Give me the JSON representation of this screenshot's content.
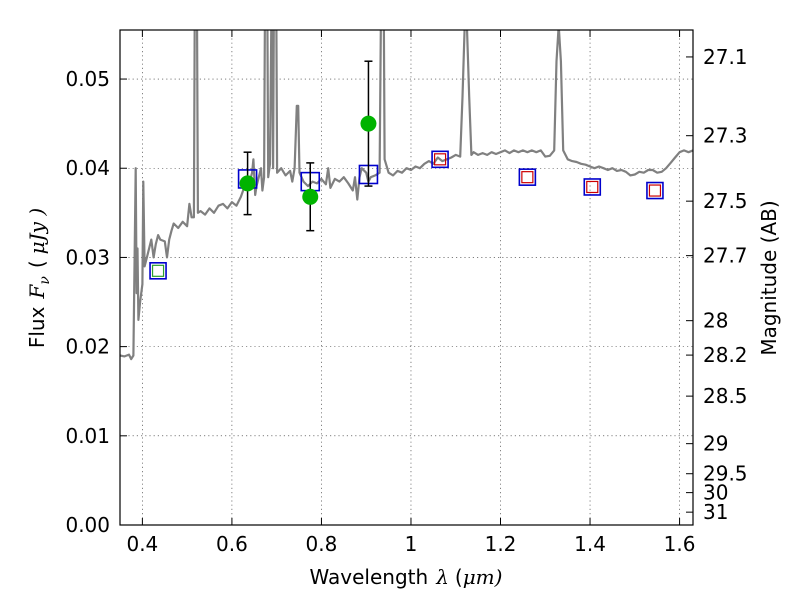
{
  "chart_data": {
    "type": "line",
    "xlabel": "Wavelength",
    "xlabel_symbol": "λ",
    "xlabel_unit_prefix": "(",
    "xlabel_unit": "μm)",
    "ylabel": "Flux",
    "ylabel_symbol": "F",
    "ylabel_symbol_sub": "ν",
    "ylabel_unit_prefix": "(",
    "ylabel_unit": "μJy )",
    "y2label": "Magnitude (AB)",
    "xlim": [
      0.35,
      1.63
    ],
    "ylim": [
      0.0,
      0.0555
    ],
    "grid": true,
    "x_ticks": [
      0.4,
      0.6,
      0.8,
      1.0,
      1.2,
      1.4,
      1.6
    ],
    "x_tick_labels": [
      "0.4",
      "0.6",
      "0.8",
      "1",
      "1.2",
      "1.4",
      "1.6"
    ],
    "y_ticks": [
      0.0,
      0.01,
      0.02,
      0.03,
      0.04,
      0.05
    ],
    "y_tick_labels": [
      "0.00",
      "0.01",
      "0.02",
      "0.03",
      "0.04",
      "0.05"
    ],
    "y2_ticks": [
      {
        "flux": 0.05248,
        "label": "27.1"
      },
      {
        "flux": 0.04365,
        "label": "27.3"
      },
      {
        "flux": 0.03631,
        "label": "27.5"
      },
      {
        "flux": 0.0302,
        "label": "27.7"
      },
      {
        "flux": 0.02291,
        "label": "28"
      },
      {
        "flux": 0.01905,
        "label": "28.2"
      },
      {
        "flux": 0.01445,
        "label": "28.5"
      },
      {
        "flux": 0.00912,
        "label": "29"
      },
      {
        "flux": 0.00575,
        "label": "29.5"
      },
      {
        "flux": 0.00363,
        "label": "30"
      },
      {
        "flux": 0.00144,
        "label": "31"
      }
    ],
    "colors": {
      "spectrum": "#808080",
      "observed": "#00b300",
      "model_box": "#0000cc",
      "inner_red": "#cc0000",
      "inner_green": "#2ca02c",
      "errorbar": "#000000"
    },
    "spectrum": [
      [
        0.35,
        0.019
      ],
      [
        0.36,
        0.0189
      ],
      [
        0.37,
        0.0191
      ],
      [
        0.375,
        0.0186
      ],
      [
        0.38,
        0.019
      ],
      [
        0.385,
        0.04
      ],
      [
        0.387,
        0.026
      ],
      [
        0.389,
        0.031
      ],
      [
        0.391,
        0.023
      ],
      [
        0.395,
        0.025
      ],
      [
        0.4,
        0.027
      ],
      [
        0.402,
        0.0385
      ],
      [
        0.405,
        0.029
      ],
      [
        0.41,
        0.03
      ],
      [
        0.415,
        0.031
      ],
      [
        0.42,
        0.032
      ],
      [
        0.425,
        0.03
      ],
      [
        0.43,
        0.0315
      ],
      [
        0.435,
        0.0325
      ],
      [
        0.44,
        0.032
      ],
      [
        0.45,
        0.0318
      ],
      [
        0.455,
        0.03
      ],
      [
        0.46,
        0.032
      ],
      [
        0.465,
        0.033
      ],
      [
        0.47,
        0.0338
      ],
      [
        0.48,
        0.0333
      ],
      [
        0.49,
        0.034
      ],
      [
        0.5,
        0.0335
      ],
      [
        0.505,
        0.036
      ],
      [
        0.51,
        0.0345
      ],
      [
        0.515,
        0.0345
      ],
      [
        0.518,
        0.07
      ],
      [
        0.521,
        0.07
      ],
      [
        0.524,
        0.035
      ],
      [
        0.53,
        0.0352
      ],
      [
        0.54,
        0.0348
      ],
      [
        0.55,
        0.0355
      ],
      [
        0.56,
        0.035
      ],
      [
        0.57,
        0.0358
      ],
      [
        0.58,
        0.036
      ],
      [
        0.59,
        0.0355
      ],
      [
        0.6,
        0.0362
      ],
      [
        0.61,
        0.0358
      ],
      [
        0.62,
        0.0368
      ],
      [
        0.63,
        0.0382
      ],
      [
        0.64,
        0.0385
      ],
      [
        0.645,
        0.0395
      ],
      [
        0.648,
        0.041
      ],
      [
        0.652,
        0.037
      ],
      [
        0.655,
        0.038
      ],
      [
        0.66,
        0.039
      ],
      [
        0.665,
        0.04
      ],
      [
        0.668,
        0.0375
      ],
      [
        0.672,
        0.039
      ],
      [
        0.675,
        0.07
      ],
      [
        0.678,
        0.07
      ],
      [
        0.681,
        0.039
      ],
      [
        0.685,
        0.0405
      ],
      [
        0.688,
        0.056
      ],
      [
        0.69,
        0.056
      ],
      [
        0.692,
        0.04
      ],
      [
        0.695,
        0.07
      ],
      [
        0.698,
        0.07
      ],
      [
        0.701,
        0.0395
      ],
      [
        0.71,
        0.04
      ],
      [
        0.72,
        0.0392
      ],
      [
        0.73,
        0.0397
      ],
      [
        0.735,
        0.0385
      ],
      [
        0.74,
        0.04
      ],
      [
        0.745,
        0.047
      ],
      [
        0.748,
        0.047
      ],
      [
        0.751,
        0.0395
      ],
      [
        0.76,
        0.0385
      ],
      [
        0.77,
        0.038
      ],
      [
        0.78,
        0.0385
      ],
      [
        0.79,
        0.0383
      ],
      [
        0.8,
        0.0388
      ],
      [
        0.81,
        0.0382
      ],
      [
        0.815,
        0.04
      ],
      [
        0.82,
        0.0378
      ],
      [
        0.83,
        0.0388
      ],
      [
        0.84,
        0.0385
      ],
      [
        0.85,
        0.039
      ],
      [
        0.86,
        0.0383
      ],
      [
        0.87,
        0.0375
      ],
      [
        0.875,
        0.039
      ],
      [
        0.88,
        0.0365
      ],
      [
        0.885,
        0.039
      ],
      [
        0.89,
        0.04
      ],
      [
        0.9,
        0.0395
      ],
      [
        0.905,
        0.0385
      ],
      [
        0.91,
        0.039
      ],
      [
        0.92,
        0.0392
      ],
      [
        0.93,
        0.0395
      ],
      [
        0.935,
        0.07
      ],
      [
        0.938,
        0.07
      ],
      [
        0.941,
        0.041
      ],
      [
        0.95,
        0.0395
      ],
      [
        0.96,
        0.0392
      ],
      [
        0.97,
        0.0397
      ],
      [
        0.98,
        0.0395
      ],
      [
        0.99,
        0.04
      ],
      [
        1.0,
        0.0398
      ],
      [
        1.01,
        0.0402
      ],
      [
        1.02,
        0.04
      ],
      [
        1.03,
        0.0405
      ],
      [
        1.04,
        0.0408
      ],
      [
        1.05,
        0.0405
      ],
      [
        1.06,
        0.0412
      ],
      [
        1.07,
        0.0408
      ],
      [
        1.08,
        0.041
      ],
      [
        1.09,
        0.0412
      ],
      [
        1.1,
        0.0415
      ],
      [
        1.11,
        0.0413
      ],
      [
        1.115,
        0.048
      ],
      [
        1.12,
        0.056
      ],
      [
        1.125,
        0.056
      ],
      [
        1.13,
        0.048
      ],
      [
        1.135,
        0.0415
      ],
      [
        1.14,
        0.0418
      ],
      [
        1.15,
        0.0415
      ],
      [
        1.16,
        0.0417
      ],
      [
        1.17,
        0.0415
      ],
      [
        1.18,
        0.0418
      ],
      [
        1.19,
        0.0416
      ],
      [
        1.2,
        0.0418
      ],
      [
        1.21,
        0.042
      ],
      [
        1.22,
        0.0417
      ],
      [
        1.23,
        0.042
      ],
      [
        1.24,
        0.0418
      ],
      [
        1.25,
        0.042
      ],
      [
        1.26,
        0.0418
      ],
      [
        1.27,
        0.042
      ],
      [
        1.28,
        0.0418
      ],
      [
        1.29,
        0.042
      ],
      [
        1.3,
        0.0413
      ],
      [
        1.31,
        0.0414
      ],
      [
        1.32,
        0.042
      ],
      [
        1.325,
        0.052
      ],
      [
        1.33,
        0.056
      ],
      [
        1.335,
        0.052
      ],
      [
        1.34,
        0.042
      ],
      [
        1.35,
        0.041
      ],
      [
        1.36,
        0.0408
      ],
      [
        1.37,
        0.0407
      ],
      [
        1.38,
        0.0405
      ],
      [
        1.39,
        0.0404
      ],
      [
        1.4,
        0.0402
      ],
      [
        1.41,
        0.04
      ],
      [
        1.42,
        0.0402
      ],
      [
        1.43,
        0.04
      ],
      [
        1.44,
        0.0398
      ],
      [
        1.45,
        0.04
      ],
      [
        1.46,
        0.0397
      ],
      [
        1.47,
        0.0398
      ],
      [
        1.48,
        0.0396
      ],
      [
        1.49,
        0.0392
      ],
      [
        1.5,
        0.0393
      ],
      [
        1.51,
        0.0396
      ],
      [
        1.52,
        0.0395
      ],
      [
        1.53,
        0.0398
      ],
      [
        1.54,
        0.0398
      ],
      [
        1.55,
        0.0395
      ],
      [
        1.56,
        0.0396
      ],
      [
        1.57,
        0.04
      ],
      [
        1.58,
        0.0406
      ],
      [
        1.59,
        0.0412
      ],
      [
        1.6,
        0.0418
      ],
      [
        1.61,
        0.042
      ],
      [
        1.62,
        0.0418
      ],
      [
        1.63,
        0.042
      ]
    ],
    "observed": [
      {
        "x": 0.635,
        "y": 0.0383,
        "yerr": 0.0035
      },
      {
        "x": 0.775,
        "y": 0.0368,
        "yerr": 0.0038
      },
      {
        "x": 0.905,
        "y": 0.045,
        "yerr": 0.007
      }
    ],
    "model_boxes": [
      {
        "x": 0.435,
        "y": 0.0285,
        "inner": "inner_green",
        "size": "small"
      },
      {
        "x": 0.635,
        "y": 0.0388,
        "inner": "none",
        "size": "large"
      },
      {
        "x": 0.775,
        "y": 0.0385,
        "inner": "none",
        "size": "large"
      },
      {
        "x": 0.905,
        "y": 0.0393,
        "inner": "none",
        "size": "large"
      },
      {
        "x": 1.065,
        "y": 0.041,
        "inner": "inner_red",
        "size": "small"
      },
      {
        "x": 1.26,
        "y": 0.039,
        "inner": "inner_red",
        "size": "small"
      },
      {
        "x": 1.405,
        "y": 0.0379,
        "inner": "inner_red",
        "size": "small"
      },
      {
        "x": 1.545,
        "y": 0.0375,
        "inner": "inner_red",
        "size": "small"
      }
    ]
  }
}
